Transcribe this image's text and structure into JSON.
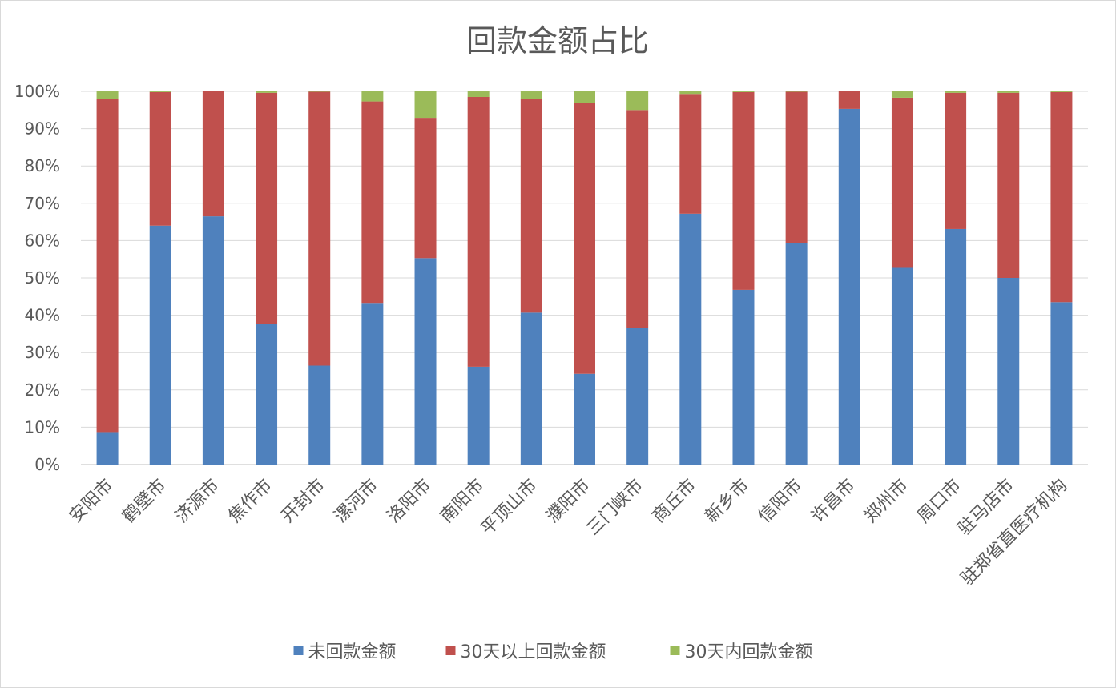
{
  "chart_data": {
    "type": "bar",
    "stacked": true,
    "percent_stacked": true,
    "title": "回款金额占比",
    "xlabel": "",
    "ylabel": "",
    "ylim": [
      0,
      100
    ],
    "yticks": [
      "0%",
      "10%",
      "20%",
      "30%",
      "40%",
      "50%",
      "60%",
      "70%",
      "80%",
      "90%",
      "100%"
    ],
    "grid": true,
    "legend_position": "bottom",
    "categories": [
      "安阳市",
      "鹤壁市",
      "济源市",
      "焦作市",
      "开封市",
      "漯河市",
      "洛阳市",
      "南阳市",
      "平顶山市",
      "濮阳市",
      "三门峡市",
      "商丘市",
      "新乡市",
      "信阳市",
      "许昌市",
      "郑州市",
      "周口市",
      "驻马店市",
      "驻郑省直医疗机构"
    ],
    "series": [
      {
        "name": "未回款金额",
        "color": "#4f81bd",
        "values": [
          8.7,
          64.0,
          66.5,
          37.7,
          26.5,
          43.3,
          55.3,
          26.2,
          40.7,
          24.3,
          36.5,
          67.2,
          46.8,
          59.3,
          95.3,
          52.9,
          63.1,
          50.0,
          43.5
        ]
      },
      {
        "name": "30天以上回款金额",
        "color": "#c0504d",
        "values": [
          89.2,
          35.8,
          33.5,
          61.9,
          73.4,
          54.0,
          37.6,
          72.3,
          57.2,
          72.5,
          58.5,
          32.1,
          53.0,
          40.6,
          4.7,
          45.4,
          36.5,
          49.6,
          56.3
        ]
      },
      {
        "name": "30天内回款金额",
        "color": "#9bbb59",
        "values": [
          2.1,
          0.2,
          0.0,
          0.4,
          0.1,
          2.7,
          7.1,
          1.5,
          2.1,
          3.2,
          5.0,
          0.7,
          0.2,
          0.1,
          0.0,
          1.7,
          0.4,
          0.4,
          0.2
        ]
      }
    ]
  }
}
